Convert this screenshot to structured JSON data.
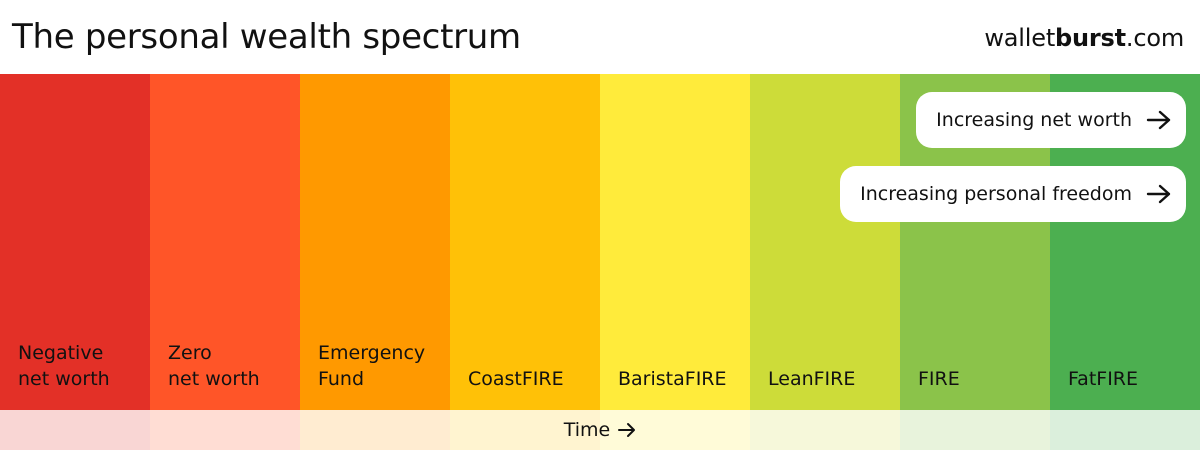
{
  "header": {
    "title": "The personal wealth spectrum",
    "brand_prefix": "wallet",
    "brand_bold": "burst",
    "brand_suffix": ".com"
  },
  "bands": [
    {
      "label": "Negative\nnet worth",
      "color": "#e33027",
      "tint": "#f9d6d4"
    },
    {
      "label": "Zero\nnet worth",
      "color": "#ff5528",
      "tint": "#ffddd4"
    },
    {
      "label": "Emergency\nFund",
      "color": "#ff9900",
      "tint": "#ffecd1"
    },
    {
      "label": "CoastFIRE",
      "color": "#ffc107",
      "tint": "#fff4d0"
    },
    {
      "label": "BaristaFIRE",
      "color": "#ffeb3b",
      "tint": "#fffbd8"
    },
    {
      "label": "LeanFIRE",
      "color": "#cddc39",
      "tint": "#f6f8da"
    },
    {
      "label": "FIRE",
      "color": "#8bc34a",
      "tint": "#e8f3dc"
    },
    {
      "label": "FatFIRE",
      "color": "#4caf50",
      "tint": "#dbefdc"
    }
  ],
  "arrows": {
    "net_worth": "Increasing net worth",
    "freedom": "Increasing personal freedom"
  },
  "time_label": "Time"
}
